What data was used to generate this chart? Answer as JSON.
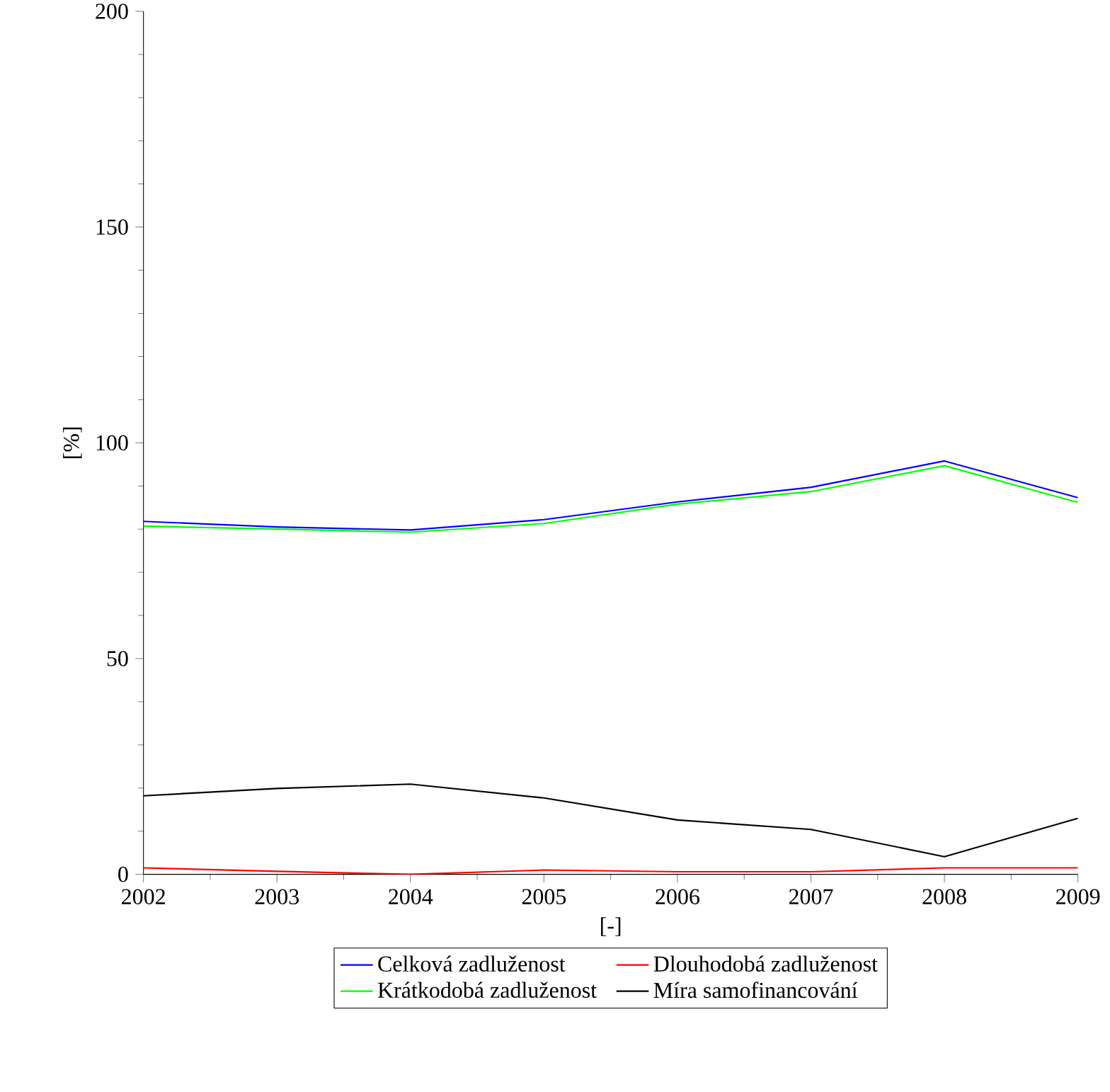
{
  "chart_data": {
    "type": "line",
    "xlabel": "[-]",
    "ylabel": "[%]",
    "x": [
      2002,
      2003,
      2004,
      2005,
      2006,
      2007,
      2008,
      2009
    ],
    "xlim": [
      2002,
      2009
    ],
    "xticks": [
      2002,
      2003,
      2004,
      2005,
      2006,
      2007,
      2008,
      2009
    ],
    "ylim": [
      0,
      200
    ],
    "yticks": [
      0,
      50,
      100,
      150,
      200
    ],
    "legend": "bottom",
    "grid": false,
    "series": [
      {
        "name": "Celková zadluženost",
        "color": "#0000ff",
        "values": [
          81.8,
          80.5,
          79.8,
          82.2,
          86.3,
          89.7,
          95.8,
          87.3
        ]
      },
      {
        "name": "Dlouhodobá zadluženost",
        "color": "#ff0000",
        "values": [
          1.5,
          0.7,
          0,
          1,
          0.6,
          0.6,
          1.5,
          1.5
        ]
      },
      {
        "name": "Krátkodobá zadluženost",
        "color": "#00ff00",
        "values": [
          80.7,
          80,
          79.3,
          81.3,
          85.8,
          88.7,
          94.7,
          86.2
        ]
      },
      {
        "name": "Míra samofinancování",
        "color": "#000000",
        "values": [
          18.2,
          19.9,
          20.9,
          17.7,
          12.6,
          10.4,
          4.1,
          13.0
        ]
      }
    ]
  }
}
